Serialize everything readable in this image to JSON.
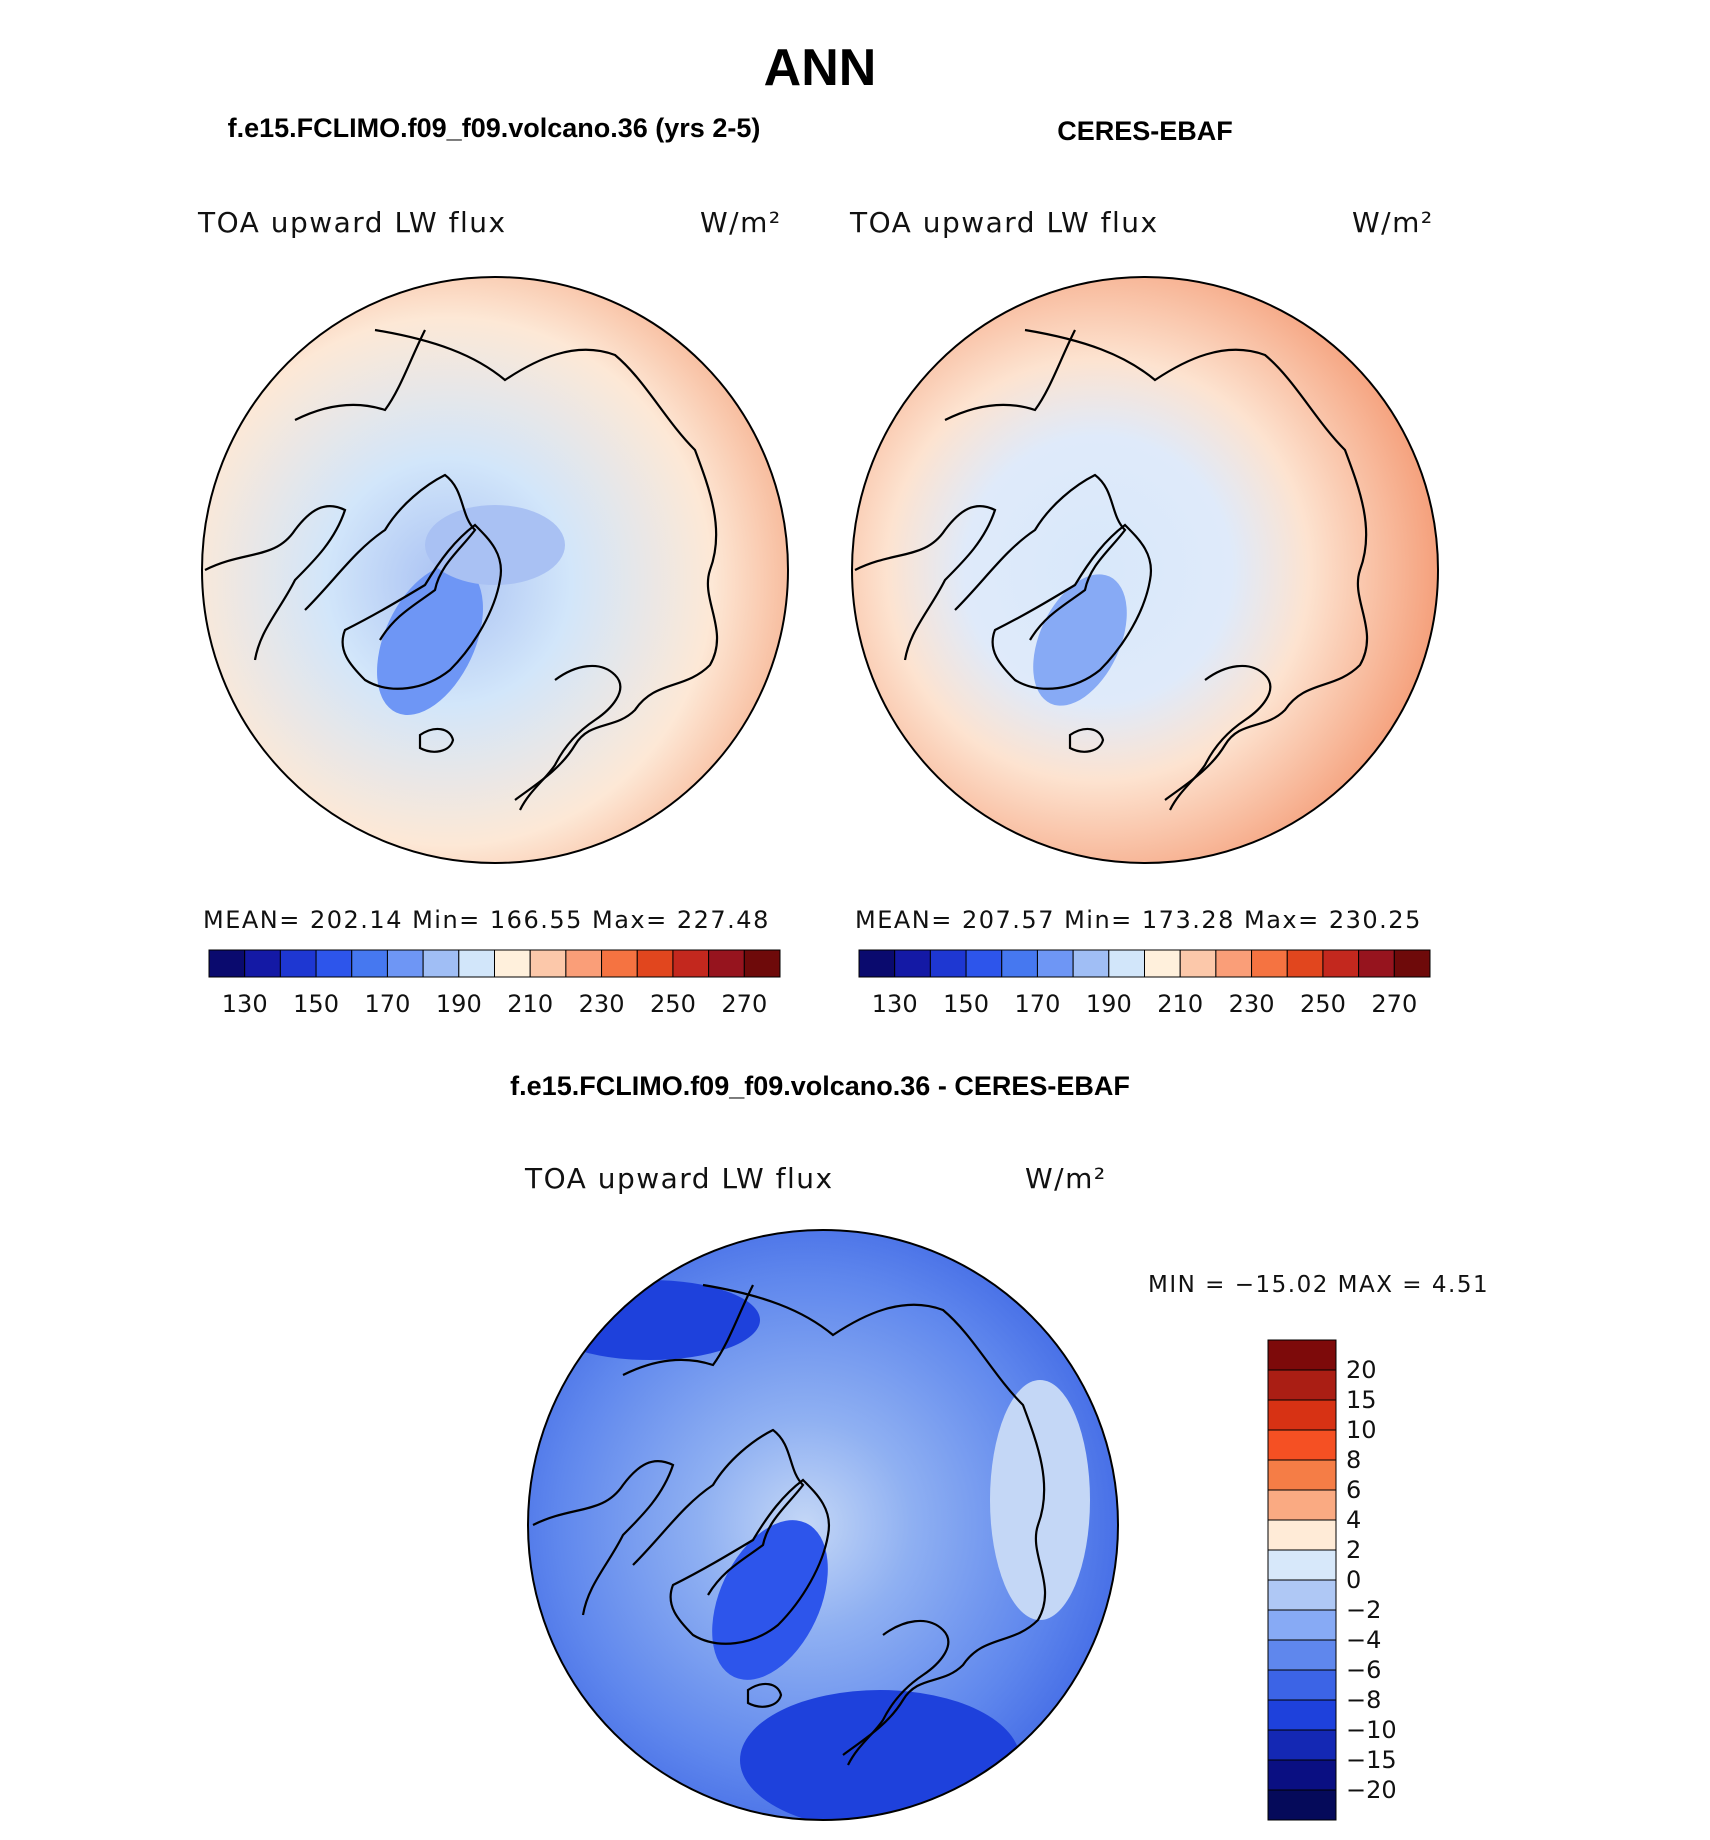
{
  "figure": {
    "season": "ANN"
  },
  "panels": [
    {
      "title": "f.e15.FCLIMO.f09_f09.volcano.36 (yrs 2-5)",
      "variable": "TOA upward LW flux",
      "units": "W/m²",
      "stats": {
        "mean": "202.14",
        "min": "166.55",
        "max": "227.48"
      },
      "stats_text": "MEAN= 202.14   Min= 166.55   Max= 227.48"
    },
    {
      "title": "CERES-EBAF",
      "variable": "TOA upward LW flux",
      "units": "W/m²",
      "stats": {
        "mean": "207.57",
        "min": "173.28",
        "max": "230.25"
      },
      "stats_text": "MEAN= 207.57   Min= 173.28   Max= 230.25"
    },
    {
      "title": "f.e15.FCLIMO.f09_f09.volcano.36 - CERES-EBAF",
      "variable": "TOA upward LW flux",
      "units": "W/m²",
      "stats": {
        "min": "-15.02",
        "max": "4.51"
      },
      "stats_text": "MIN = −15.02 MAX =    4.51"
    }
  ],
  "colors": {
    "land_outline": "#000000",
    "outline": "#000000"
  },
  "chart_data": [
    {
      "type": "heatmap",
      "projection": "north polar stereographic",
      "title": "f.e15.FCLIMO.f09_f09.volcano.36 (yrs 2-5)",
      "field": "TOA upward LW flux",
      "units": "W/m²",
      "mean": 202.14,
      "min": 166.55,
      "max": 227.48,
      "colorbar": {
        "orientation": "horizontal",
        "levels": [
          130,
          140,
          150,
          160,
          170,
          180,
          190,
          200,
          210,
          220,
          230,
          240,
          250,
          260,
          270
        ],
        "tick_labels": [
          "130",
          "150",
          "170",
          "190",
          "210",
          "230",
          "250",
          "270"
        ],
        "colors": [
          "#0a0a6e",
          "#1419a5",
          "#1e37d2",
          "#2d55eb",
          "#4678f0",
          "#6e96f5",
          "#a0bef5",
          "#d2e6fa",
          "#fff0dc",
          "#fcc8aa",
          "#fa9e78",
          "#f57341",
          "#e1461e",
          "#c3281e",
          "#96141e",
          "#6e0a0a"
        ]
      }
    },
    {
      "type": "heatmap",
      "projection": "north polar stereographic",
      "title": "CERES-EBAF",
      "field": "TOA upward LW flux",
      "units": "W/m²",
      "mean": 207.57,
      "min": 173.28,
      "max": 230.25,
      "colorbar": {
        "orientation": "horizontal",
        "levels": [
          130,
          140,
          150,
          160,
          170,
          180,
          190,
          200,
          210,
          220,
          230,
          240,
          250,
          260,
          270
        ],
        "tick_labels": [
          "130",
          "150",
          "170",
          "190",
          "210",
          "230",
          "250",
          "270"
        ],
        "colors": [
          "#0a0a6e",
          "#1419a5",
          "#1e37d2",
          "#2d55eb",
          "#4678f0",
          "#6e96f5",
          "#a0bef5",
          "#d2e6fa",
          "#fff0dc",
          "#fcc8aa",
          "#fa9e78",
          "#f57341",
          "#e1461e",
          "#c3281e",
          "#96141e",
          "#6e0a0a"
        ]
      }
    },
    {
      "type": "heatmap",
      "projection": "north polar stereographic",
      "title": "f.e15.FCLIMO.f09_f09.volcano.36 - CERES-EBAF",
      "field": "TOA upward LW flux",
      "units": "W/m²",
      "min": -15.02,
      "max": 4.51,
      "colorbar": {
        "orientation": "vertical",
        "levels": [
          -20,
          -15,
          -10,
          -8,
          -6,
          -4,
          -2,
          0,
          2,
          4,
          6,
          8,
          10,
          15,
          20
        ],
        "tick_labels": [
          "20",
          "15",
          "10",
          "8",
          "6",
          "4",
          "2",
          "0",
          "−2",
          "−4",
          "−6",
          "−8",
          "−10",
          "−15",
          "−20"
        ],
        "colors_top_to_bottom": [
          "#7d0a0a",
          "#aa1e14",
          "#d73214",
          "#f55023",
          "#f57d46",
          "#faaa82",
          "#ffebd7",
          "#d7e8fa",
          "#afc8f5",
          "#87aaf5",
          "#5f87ed",
          "#3c64e6",
          "#1e41dc",
          "#1428b4",
          "#0a0f82",
          "#050a5a"
        ]
      }
    }
  ]
}
